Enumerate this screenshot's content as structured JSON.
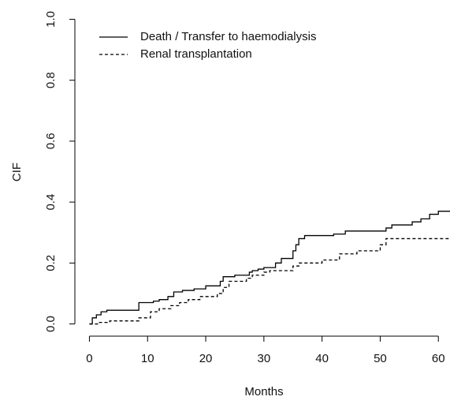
{
  "chart_data": {
    "type": "step",
    "xlabel": "Months",
    "ylabel": "CIF",
    "xlim": [
      -2.5,
      62
    ],
    "ylim": [
      -0.04,
      1.04
    ],
    "xticks": [
      0,
      10,
      20,
      30,
      40,
      50,
      60
    ],
    "yticks": [
      {
        "value": 0,
        "label": "0.0"
      },
      {
        "value": 0.2,
        "label": "0.2"
      },
      {
        "value": 0.4,
        "label": "0.4"
      },
      {
        "value": 0.6,
        "label": "0.6"
      },
      {
        "value": 0.8,
        "label": "0.8"
      },
      {
        "value": 1,
        "label": "1.0"
      }
    ],
    "grid": false,
    "legend": "top-left",
    "series": [
      {
        "name": "Death / Transfer to haemodialysis",
        "color": "#000000",
        "dash": "solid",
        "x": [
          0,
          0.5,
          1.2,
          2,
          3,
          8.5,
          11,
          12,
          13.5,
          14.5,
          16,
          18,
          20,
          22.5,
          23,
          25,
          27.5,
          28,
          29,
          30,
          32,
          33,
          35,
          35.5,
          36,
          37,
          42,
          44,
          51,
          52,
          55.5,
          57,
          58.5,
          60,
          62
        ],
        "values": [
          0,
          0.02,
          0.03,
          0.04,
          0.045,
          0.07,
          0.075,
          0.08,
          0.09,
          0.105,
          0.11,
          0.115,
          0.125,
          0.14,
          0.155,
          0.16,
          0.17,
          0.175,
          0.18,
          0.185,
          0.2,
          0.215,
          0.24,
          0.26,
          0.28,
          0.29,
          0.295,
          0.305,
          0.315,
          0.325,
          0.335,
          0.345,
          0.36,
          0.37,
          0.37
        ]
      },
      {
        "name": "Renal transplantation",
        "color": "#000000",
        "dash": "dashed",
        "x": [
          0,
          1.5,
          3.5,
          8.5,
          10.5,
          12,
          14,
          15.5,
          17,
          19,
          22,
          23,
          24,
          27,
          28,
          30,
          31,
          35,
          36,
          40,
          43,
          46,
          50,
          51,
          62
        ],
        "values": [
          0,
          0.005,
          0.01,
          0.02,
          0.04,
          0.05,
          0.06,
          0.07,
          0.08,
          0.09,
          0.1,
          0.12,
          0.14,
          0.15,
          0.16,
          0.17,
          0.175,
          0.19,
          0.2,
          0.21,
          0.23,
          0.24,
          0.26,
          0.28,
          0.28
        ]
      }
    ]
  }
}
